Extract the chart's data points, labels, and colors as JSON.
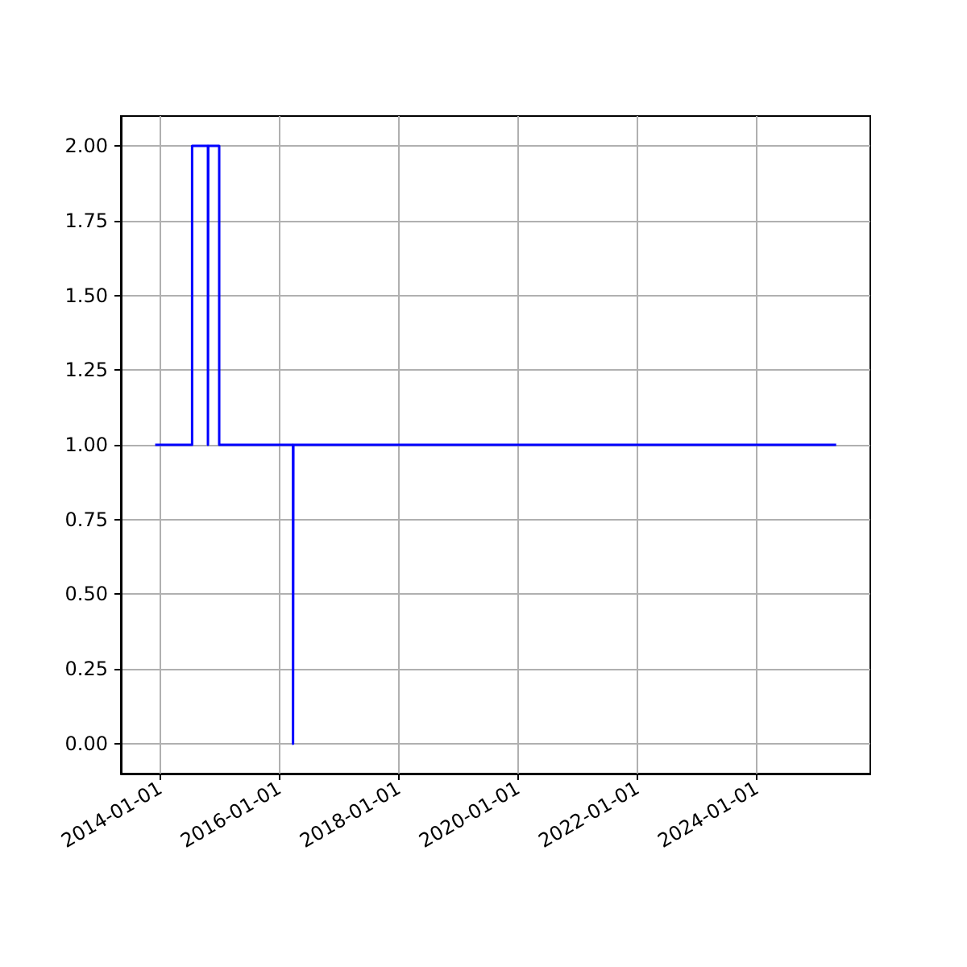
{
  "chart_data": {
    "type": "step",
    "x": [
      "2013-12-01",
      "2014-07-15",
      "2014-10-20",
      "2014-10-22",
      "2014-12-28",
      "2016-03-24",
      "2016-03-26",
      "2025-05-01"
    ],
    "values": [
      1,
      2,
      1,
      2,
      1,
      0,
      1,
      1
    ],
    "color": "#0000ff",
    "xlim": [
      "2013-05-05",
      "2025-11-26"
    ],
    "xticks": [
      "2014-01-01",
      "2016-01-01",
      "2018-01-01",
      "2020-01-01",
      "2022-01-01",
      "2024-01-01"
    ],
    "ylim": [
      -0.1,
      2.1
    ],
    "yticks": [
      {
        "value": 0,
        "label": "0.00"
      },
      {
        "value": 0.25,
        "label": "0.25"
      },
      {
        "value": 0.5,
        "label": "0.50"
      },
      {
        "value": 0.75,
        "label": "0.75"
      },
      {
        "value": 1,
        "label": "1.00"
      },
      {
        "value": 1.25,
        "label": "1.25"
      },
      {
        "value": 1.5,
        "label": "1.50"
      },
      {
        "value": 1.75,
        "label": "1.75"
      },
      {
        "value": 2,
        "label": "2.00"
      }
    ],
    "grid": true,
    "marker": "none",
    "line_style": "solid"
  }
}
